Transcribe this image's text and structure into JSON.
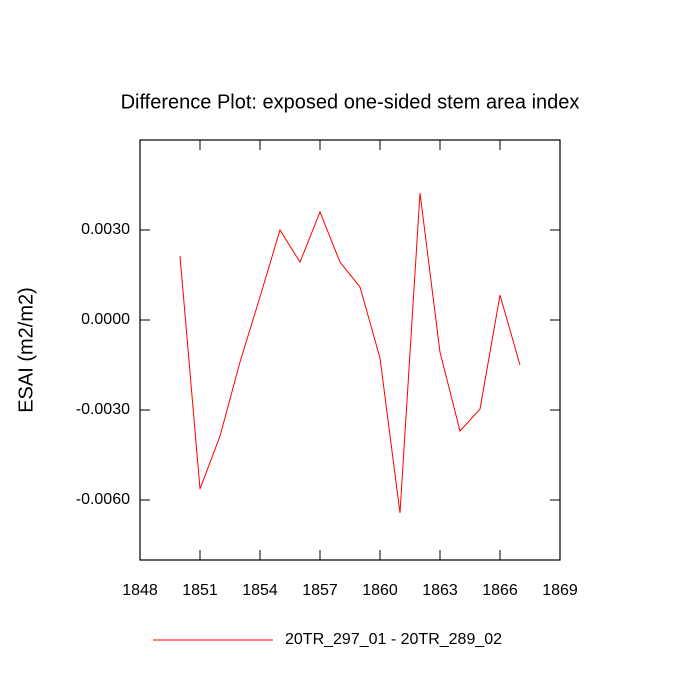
{
  "chart_data": {
    "type": "line",
    "title": "Difference Plot: exposed one-sided stem area index",
    "y_label": "ESAI  (m2/m2)",
    "x": [
      1850,
      1851,
      1852,
      1853,
      1854,
      1855,
      1856,
      1857,
      1858,
      1859,
      1860,
      1861,
      1862,
      1863,
      1864,
      1865,
      1866,
      1867
    ],
    "series": [
      {
        "name": "20TR_297_01 - 20TR_289_02",
        "color": "#ff0000",
        "values": [
          0.00213,
          -0.00563,
          -0.00387,
          -0.0014,
          0.00077,
          0.003,
          0.00193,
          0.0036,
          0.00193,
          0.0011,
          -0.00127,
          -0.00643,
          0.00423,
          -0.00107,
          -0.0037,
          -0.00297,
          0.00083,
          -0.0015
        ]
      }
    ],
    "xlim": [
      1848,
      1869
    ],
    "xticks": [
      1848,
      1851,
      1854,
      1857,
      1860,
      1863,
      1866,
      1869
    ],
    "ylim": [
      -0.008,
      0.006
    ],
    "yticks": [
      {
        "value": 0.003,
        "label": "0.0030"
      },
      {
        "value": 0,
        "label": "0.0000"
      },
      {
        "value": -0.003,
        "label": "-0.0030"
      },
      {
        "value": -0.006,
        "label": "-0.0060"
      }
    ],
    "legend_position": "bottom"
  }
}
